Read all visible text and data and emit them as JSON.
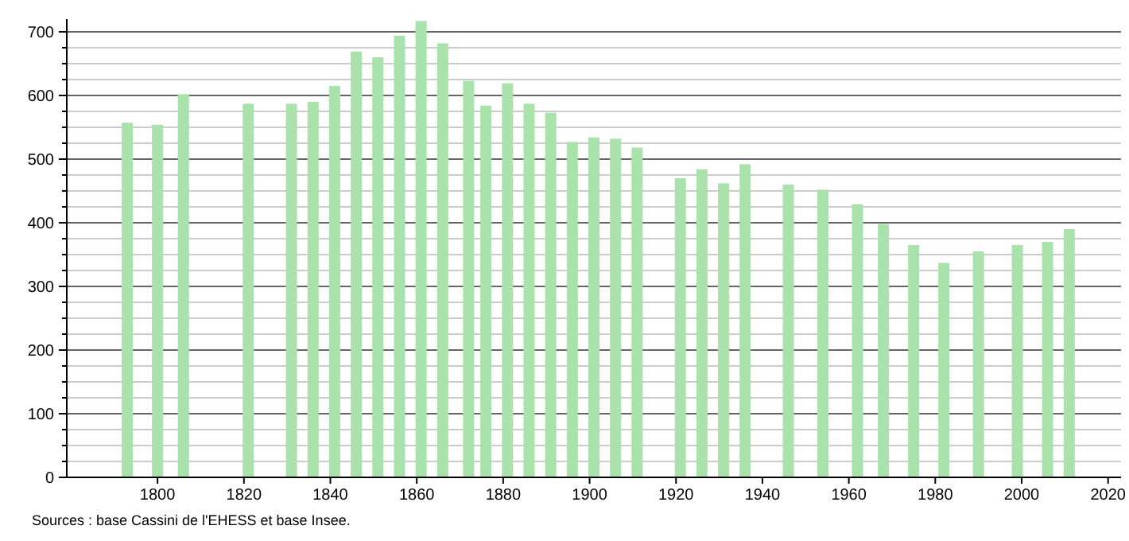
{
  "chart_data": {
    "type": "bar",
    "color": "#a9e2ab",
    "x": [
      1793,
      1800,
      1806,
      1821,
      1831,
      1836,
      1841,
      1846,
      1851,
      1856,
      1861,
      1866,
      1872,
      1876,
      1881,
      1886,
      1891,
      1896,
      1901,
      1906,
      1911,
      1921,
      1926,
      1931,
      1936,
      1946,
      1954,
      1962,
      1968,
      1975,
      1982,
      1990,
      1999,
      2006,
      2011
    ],
    "values": [
      557,
      554,
      602,
      587,
      587,
      590,
      615,
      669,
      660,
      694,
      717,
      682,
      623,
      584,
      619,
      587,
      573,
      527,
      534,
      532,
      518,
      470,
      484,
      462,
      492,
      460,
      452,
      429,
      398,
      365,
      337,
      355,
      365,
      370,
      390
    ],
    "xlim": [
      1779,
      2023
    ],
    "xticks": [
      1800,
      1820,
      1840,
      1860,
      1880,
      1900,
      1920,
      1940,
      1960,
      1980,
      2000,
      2020
    ],
    "ylim": [
      0,
      720
    ],
    "yticks": [
      0,
      {
        "value": 25,
        "label": null
      },
      {
        "value": 50,
        "label": null
      },
      {
        "value": 75,
        "label": null
      },
      100,
      {
        "value": 125,
        "label": null
      },
      {
        "value": 150,
        "label": null
      },
      {
        "value": 175,
        "label": null
      },
      200,
      {
        "value": 225,
        "label": null
      },
      {
        "value": 250,
        "label": null
      },
      {
        "value": 275,
        "label": null
      },
      300,
      {
        "value": 325,
        "label": null
      },
      {
        "value": 350,
        "label": null
      },
      {
        "value": 375,
        "label": null
      },
      400,
      {
        "value": 425,
        "label": null
      },
      {
        "value": 450,
        "label": null
      },
      {
        "value": 475,
        "label": null
      },
      500,
      {
        "value": 525,
        "label": null
      },
      {
        "value": 550,
        "label": null
      },
      {
        "value": 575,
        "label": null
      },
      600,
      {
        "value": 625,
        "label": null
      },
      {
        "value": 650,
        "label": null
      },
      {
        "value": 675,
        "label": null
      },
      700
    ],
    "grid": true,
    "annotations": [
      "Sources : base Cassini de l'EHESS et base Insee."
    ]
  }
}
